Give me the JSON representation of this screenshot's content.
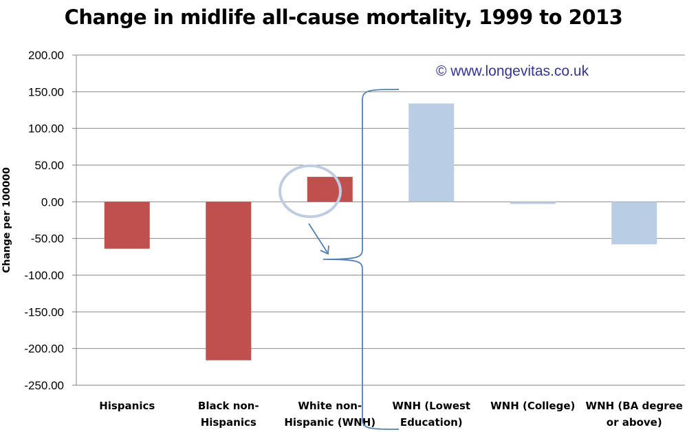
{
  "title": "Change in midlife all-cause mortality, 1999 to 2013",
  "watermark": "© www.longevitas.co.uk",
  "chart_data": {
    "type": "bar",
    "title": "Change in midlife all-cause mortality, 1999 to 2013",
    "xlabel": "",
    "ylabel": "Change per 100000",
    "ylim": [
      -250,
      200
    ],
    "yticks": [
      "200.00",
      "150.00",
      "100.00",
      "50.00",
      "0.00",
      "-50.00",
      "-100.00",
      "-150.00",
      "-200.00",
      "-250.00"
    ],
    "categories": [
      [
        "Hispanics"
      ],
      [
        "Black non-",
        "Hispanics"
      ],
      [
        "White non-",
        "Hispanic (WNH)"
      ],
      [
        "WNH (Lowest",
        "Education)"
      ],
      [
        "WNH (College)"
      ],
      [
        "WNH (BA degree",
        "or above)"
      ]
    ],
    "values": [
      -64,
      -216,
      34,
      134,
      -3,
      -58
    ],
    "colors": [
      "#c0504d",
      "#c0504d",
      "#c0504d",
      "#b9cde5",
      "#b9cde5",
      "#b9cde5"
    ],
    "grid": true,
    "annotations": [
      "circle around White non-Hispanic (WNH) bar",
      "arrow to brace",
      "brace spanning WNH breakdown bars"
    ]
  }
}
